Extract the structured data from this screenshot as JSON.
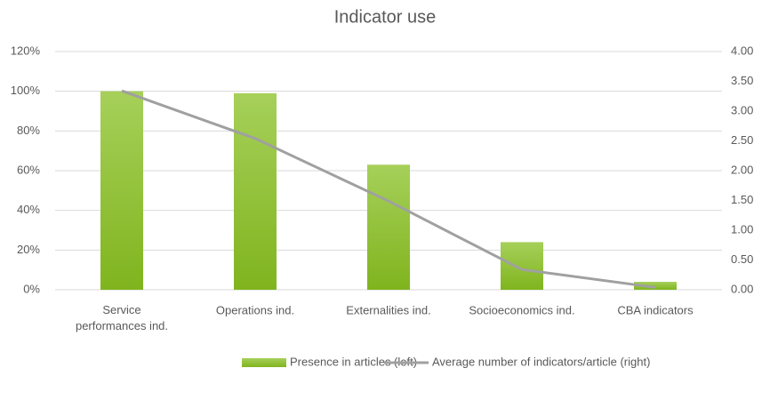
{
  "chart_data": {
    "type": "bar-line",
    "title": "Indicator use",
    "categories": [
      "Service performances ind.",
      "Operations ind.",
      "Externalities ind.",
      "Socioeconomics ind.",
      "CBA indicators"
    ],
    "series": [
      {
        "name": "Presence in articles (left)",
        "type": "bar",
        "color": "#8dbd2a",
        "values": [
          100,
          99,
          63,
          24,
          4
        ]
      },
      {
        "name": "Average number of indicators/article (right)",
        "type": "line",
        "axis": "y2",
        "color": "#a0a0a0",
        "values": [
          3.34,
          2.54,
          1.49,
          0.34,
          0.04
        ]
      }
    ],
    "ylim": [
      0,
      120
    ],
    "yticks": [
      {
        "value": 0,
        "label": "0%"
      },
      {
        "value": 20,
        "label": "20%"
      },
      {
        "value": 40,
        "label": "40%"
      },
      {
        "value": 60,
        "label": "60%"
      },
      {
        "value": 80,
        "label": "80%"
      },
      {
        "value": 100,
        "label": "100%"
      },
      {
        "value": 120,
        "label": "120%"
      }
    ],
    "y2lim": [
      0,
      4
    ],
    "y2ticks": [
      {
        "value": 0,
        "label": "0.00"
      },
      {
        "value": 0.5,
        "label": "0.50"
      },
      {
        "value": 1,
        "label": "1.00"
      },
      {
        "value": 1.5,
        "label": "1.50"
      },
      {
        "value": 2,
        "label": "2.00"
      },
      {
        "value": 2.5,
        "label": "2.50"
      },
      {
        "value": 3,
        "label": "3.00"
      },
      {
        "value": 3.5,
        "label": "3.50"
      },
      {
        "value": 4,
        "label": "4.00"
      }
    ],
    "grid": true,
    "legend": "bottom"
  }
}
